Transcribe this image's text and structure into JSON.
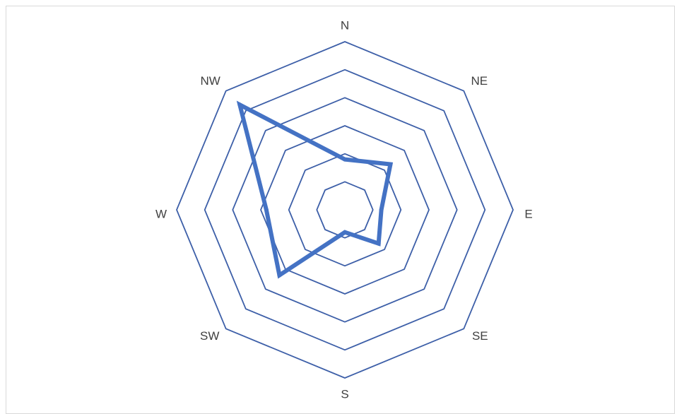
{
  "chart_data": {
    "type": "radar",
    "categories": [
      "N",
      "NE",
      "E",
      "SE",
      "S",
      "SW",
      "W",
      "NW"
    ],
    "series": [
      {
        "values": [
          1.8,
          2.3,
          1.3,
          1.7,
          0.8,
          3.3,
          2.8,
          5.3
        ]
      }
    ],
    "rlim": [
      0,
      6
    ],
    "ring_count": 6,
    "grid": true,
    "legend": "none",
    "colors": {
      "grid": "#3d5fa8",
      "series": "#4472c4",
      "labels": "#404040"
    }
  }
}
